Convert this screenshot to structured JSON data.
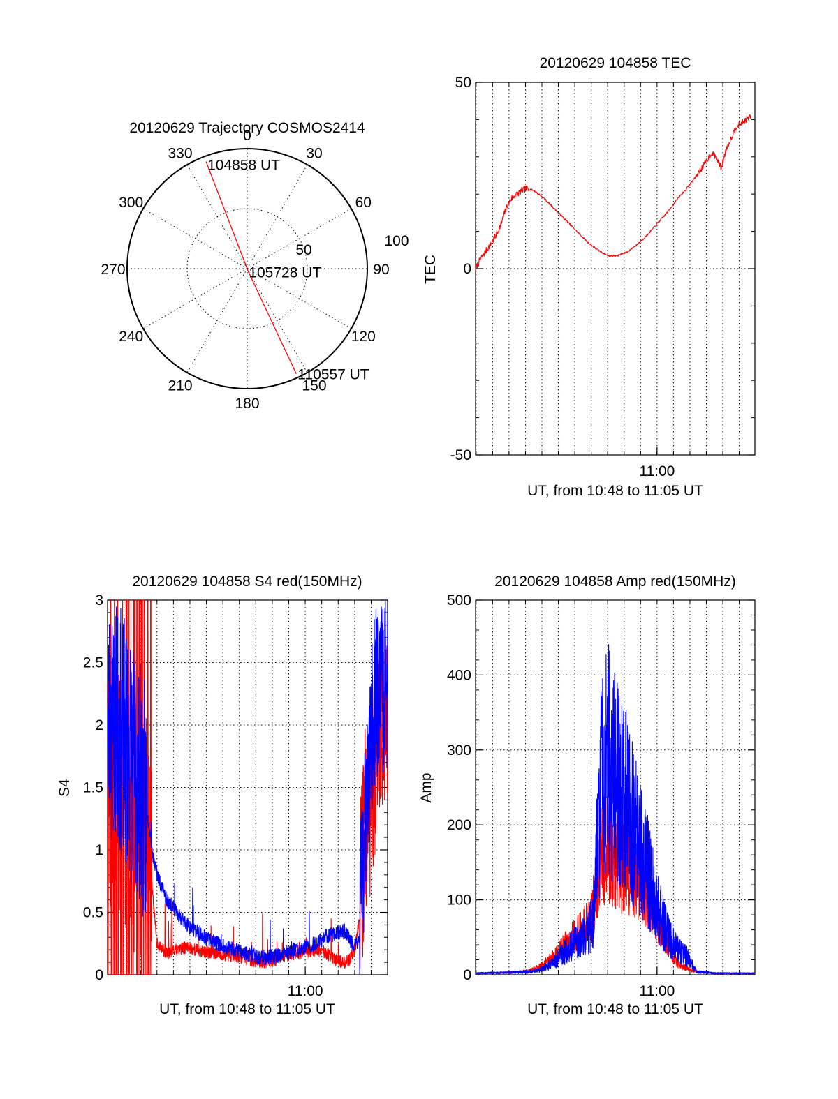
{
  "colors": {
    "red": "#ff0000",
    "blue": "#0000ff",
    "ink": "#000000",
    "background": "#ffffff"
  },
  "chart_data": [
    {
      "id": "trajectory",
      "type": "polar",
      "title": "20120629 Trajectory COSMOS2414",
      "azimuth_labels": [
        "0",
        "30",
        "60",
        "90",
        "120",
        "150",
        "180",
        "210",
        "240",
        "270",
        "300",
        "330"
      ],
      "radial_labels": [
        "50",
        "100"
      ],
      "track": {
        "color": "red",
        "points": [
          {
            "azimuth": 339,
            "zenith": 86,
            "label": "104858 UT"
          },
          {
            "azimuth": 160,
            "zenith": 2,
            "label": "105728 UT"
          },
          {
            "azimuth": 155,
            "zenith": 87,
            "label": "110557 UT"
          }
        ]
      }
    },
    {
      "id": "tec",
      "type": "line",
      "title": "20120629 104858 TEC",
      "xlabel": "UT, from 10:48 to 11:05 UT",
      "ylabel": "TEC",
      "xlim": [
        10.8161,
        11.0992
      ],
      "ylim": [
        -50,
        50
      ],
      "yticks": [
        "-50",
        "0",
        "50"
      ],
      "xticks": [
        {
          "x": 11.0,
          "label": "11:00"
        }
      ],
      "grid": true,
      "series": [
        {
          "color": "red",
          "x": [
            10.8161,
            10.822,
            10.83,
            10.837,
            10.842,
            10.848,
            10.853,
            10.858,
            10.863,
            10.868,
            10.875,
            10.885,
            10.9,
            10.915,
            10.93,
            10.94,
            10.95,
            10.96,
            10.97,
            10.98,
            10.99,
            11.0,
            11.01,
            11.02,
            11.03,
            11.04,
            11.048,
            11.055,
            11.06,
            11.065,
            11.07,
            11.08,
            11.09,
            11.095
          ],
          "y": [
            0,
            3,
            6,
            9,
            12,
            17,
            19,
            20,
            21,
            21.5,
            21,
            19,
            15,
            11,
            7,
            5,
            3.5,
            3.5,
            4.5,
            6.5,
            9,
            12,
            15,
            18.5,
            21.5,
            25,
            28,
            31,
            30,
            27,
            32,
            38,
            40,
            41
          ]
        }
      ]
    },
    {
      "id": "s4",
      "type": "line",
      "title": "20120629 104858 S4 red(150MHz)",
      "xlabel": "UT, from 10:48 to 11:05 UT",
      "ylabel": "S4",
      "xlim": [
        10.8,
        11.0833
      ],
      "ylim": [
        0,
        3
      ],
      "yticks": [
        "0",
        "0.5",
        "1",
        "1.5",
        "2",
        "2.5",
        "3"
      ],
      "xticks": [
        {
          "x": 11.0,
          "label": "11:00"
        }
      ],
      "grid": true,
      "series": [
        {
          "color": "red",
          "x": [
            10.8,
            10.81,
            10.82,
            10.83,
            10.84,
            10.845,
            10.85,
            10.86,
            10.87,
            10.88,
            10.89,
            10.9,
            10.91,
            10.92,
            10.93,
            10.94,
            10.95,
            10.96,
            10.97,
            10.98,
            10.99,
            11.0,
            11.01,
            11.02,
            11.03,
            11.04,
            11.045,
            11.05,
            11.055,
            11.06,
            11.065,
            11.07,
            11.0833
          ],
          "y": [
            1.6,
            1.4,
            1.3,
            1.2,
            1.0,
            0.7,
            0.25,
            0.17,
            0.2,
            0.22,
            0.2,
            0.18,
            0.17,
            0.16,
            0.15,
            0.13,
            0.11,
            0.1,
            0.12,
            0.15,
            0.17,
            0.18,
            0.2,
            0.18,
            0.12,
            0.1,
            0.12,
            0.2,
            0.45,
            1.2,
            1.4,
            1.7,
            2.2
          ]
        },
        {
          "color": "blue",
          "x": [
            10.8,
            10.81,
            10.82,
            10.83,
            10.84,
            10.845,
            10.85,
            10.86,
            10.87,
            10.88,
            10.89,
            10.9,
            10.91,
            10.92,
            10.93,
            10.94,
            10.95,
            10.96,
            10.97,
            10.98,
            10.99,
            11.0,
            11.01,
            11.02,
            11.03,
            11.04,
            11.045,
            11.05,
            11.055,
            11.06,
            11.065,
            11.07,
            11.0833
          ],
          "y": [
            2.0,
            2.0,
            1.8,
            1.6,
            1.3,
            1.0,
            0.8,
            0.6,
            0.5,
            0.4,
            0.35,
            0.3,
            0.26,
            0.22,
            0.2,
            0.17,
            0.15,
            0.14,
            0.15,
            0.17,
            0.2,
            0.22,
            0.25,
            0.3,
            0.33,
            0.35,
            0.28,
            0.22,
            0.3,
            1.2,
            1.8,
            2.2,
            2.3
          ]
        }
      ]
    },
    {
      "id": "amp",
      "type": "line",
      "title": "20120629 104858 Amp red(150MHz)",
      "xlabel": "UT, from 10:48 to 11:05 UT",
      "ylabel": "Amp",
      "xlim": [
        10.8161,
        11.0992
      ],
      "ylim": [
        0,
        500
      ],
      "yticks": [
        "0",
        "100",
        "200",
        "300",
        "400",
        "500"
      ],
      "xticks": [
        {
          "x": 11.0,
          "label": "11:00"
        }
      ],
      "grid": true,
      "series": [
        {
          "color": "red",
          "x": [
            10.8161,
            10.85,
            10.87,
            10.88,
            10.89,
            10.9,
            10.91,
            10.92,
            10.93,
            10.935,
            10.94,
            10.945,
            10.95,
            10.96,
            10.97,
            10.98,
            10.99,
            11.0,
            11.01,
            11.02,
            11.03,
            11.04,
            11.06,
            11.0992
          ],
          "y": [
            2,
            3,
            5,
            10,
            18,
            30,
            45,
            55,
            70,
            90,
            120,
            165,
            170,
            150,
            140,
            135,
            110,
            80,
            45,
            15,
            8,
            4,
            2,
            2
          ]
        },
        {
          "color": "blue",
          "x": [
            10.8161,
            10.85,
            10.87,
            10.88,
            10.89,
            10.9,
            10.91,
            10.92,
            10.93,
            10.935,
            10.94,
            10.945,
            10.95,
            10.96,
            10.97,
            10.98,
            10.99,
            11.0,
            11.01,
            11.02,
            11.03,
            11.04,
            11.06,
            11.0992
          ],
          "y": [
            2,
            3,
            4,
            6,
            12,
            22,
            35,
            45,
            55,
            75,
            200,
            270,
            290,
            260,
            230,
            180,
            140,
            90,
            55,
            35,
            25,
            4,
            2,
            2
          ]
        }
      ]
    }
  ]
}
